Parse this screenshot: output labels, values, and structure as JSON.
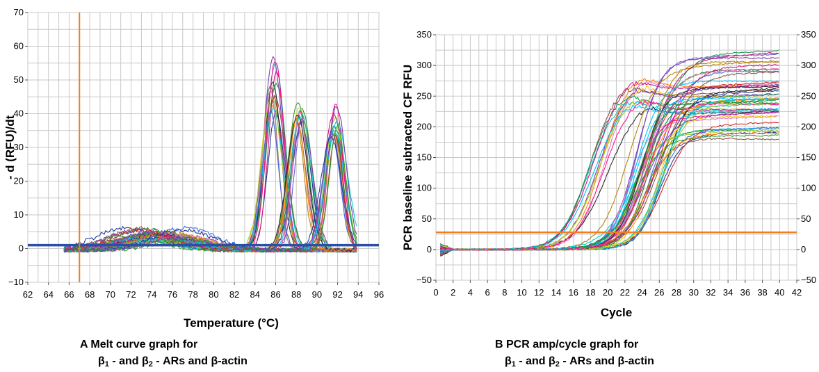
{
  "chart_data": [
    {
      "panel": "A",
      "type": "line",
      "xlabel": "Temperature (°C)",
      "ylabel": "- d (RFU)/dt",
      "xlim": [
        62,
        96
      ],
      "ylim": [
        -10,
        70
      ],
      "x_ticks": [
        "62",
        "64",
        "66",
        "68",
        "70",
        "72",
        "74",
        "76",
        "78",
        "80",
        "82",
        "84",
        "86",
        "88",
        "90",
        "92",
        "94",
        "96"
      ],
      "y_ticks": [
        "−10",
        "0",
        "10",
        "20",
        "30",
        "40",
        "50",
        "60",
        "70"
      ],
      "threshold_y": 1,
      "threshold_color": "#2b4fa8",
      "vertical_marker_x": 67,
      "marker_color": "#f07e1e",
      "grid": true,
      "series_groups": [
        {
          "peak_x": 85.7,
          "peak_range": [
            41,
            58
          ],
          "count": 16
        },
        {
          "peak_x": 88.3,
          "peak_range": [
            38,
            45
          ],
          "count": 14
        },
        {
          "peak_x": 91.7,
          "peak_range": [
            32,
            44
          ],
          "count": 14
        }
      ],
      "curve_x_range": [
        65.5,
        94
      ],
      "shoulder": {
        "x": 74.5,
        "y": 6
      },
      "caption_line1": "A  Melt curve graph for",
      "caption_line2": {
        "b1": "β",
        "s1": "1",
        "m1": " - and β",
        "s2": "2",
        "m2": " - ARs and β-actin"
      }
    },
    {
      "panel": "B",
      "type": "line",
      "xlabel": "Cycle",
      "ylabel": "PCR baseline subtracted CF RFU",
      "xlim": [
        0,
        42
      ],
      "ylim": [
        -50,
        350
      ],
      "x_ticks": [
        "0",
        "2",
        "4",
        "6",
        "8",
        "10",
        "12",
        "14",
        "16",
        "18",
        "20",
        "22",
        "24",
        "26",
        "28",
        "30",
        "32",
        "34",
        "36",
        "38",
        "40",
        "42"
      ],
      "y_ticks": [
        "−50",
        "0",
        "50",
        "100",
        "150",
        "200",
        "250",
        "300",
        "350"
      ],
      "threshold_y": 28,
      "threshold_color": "#f07e1e",
      "grid": true,
      "series_groups": [
        {
          "midpoint_cycle": 18.5,
          "plateau_range": [
            195,
            265
          ],
          "count": 12
        },
        {
          "midpoint_cycle": 24.5,
          "plateau_range": [
            180,
            320
          ],
          "count": 40
        }
      ],
      "curve_x_range": [
        0.5,
        40
      ],
      "caption_line1": "B  PCR amp/cycle graph for",
      "caption_line2": {
        "b1": "β",
        "s1": "1",
        "m1": " - and β",
        "s2": "2",
        "m2": " - ARs and β-actin"
      }
    }
  ],
  "palette": [
    "#1f3d99",
    "#d62728",
    "#2ca02c",
    "#7b3fb0",
    "#f5c518",
    "#17becf",
    "#e377c2",
    "#8c564b",
    "#2a2a2a",
    "#ff7f0e",
    "#1a9850",
    "#c51b7d",
    "#00bfff",
    "#9acd32",
    "#ff1493",
    "#4169e1",
    "#228b22",
    "#b8860b",
    "#6a5acd",
    "#00ced1"
  ]
}
